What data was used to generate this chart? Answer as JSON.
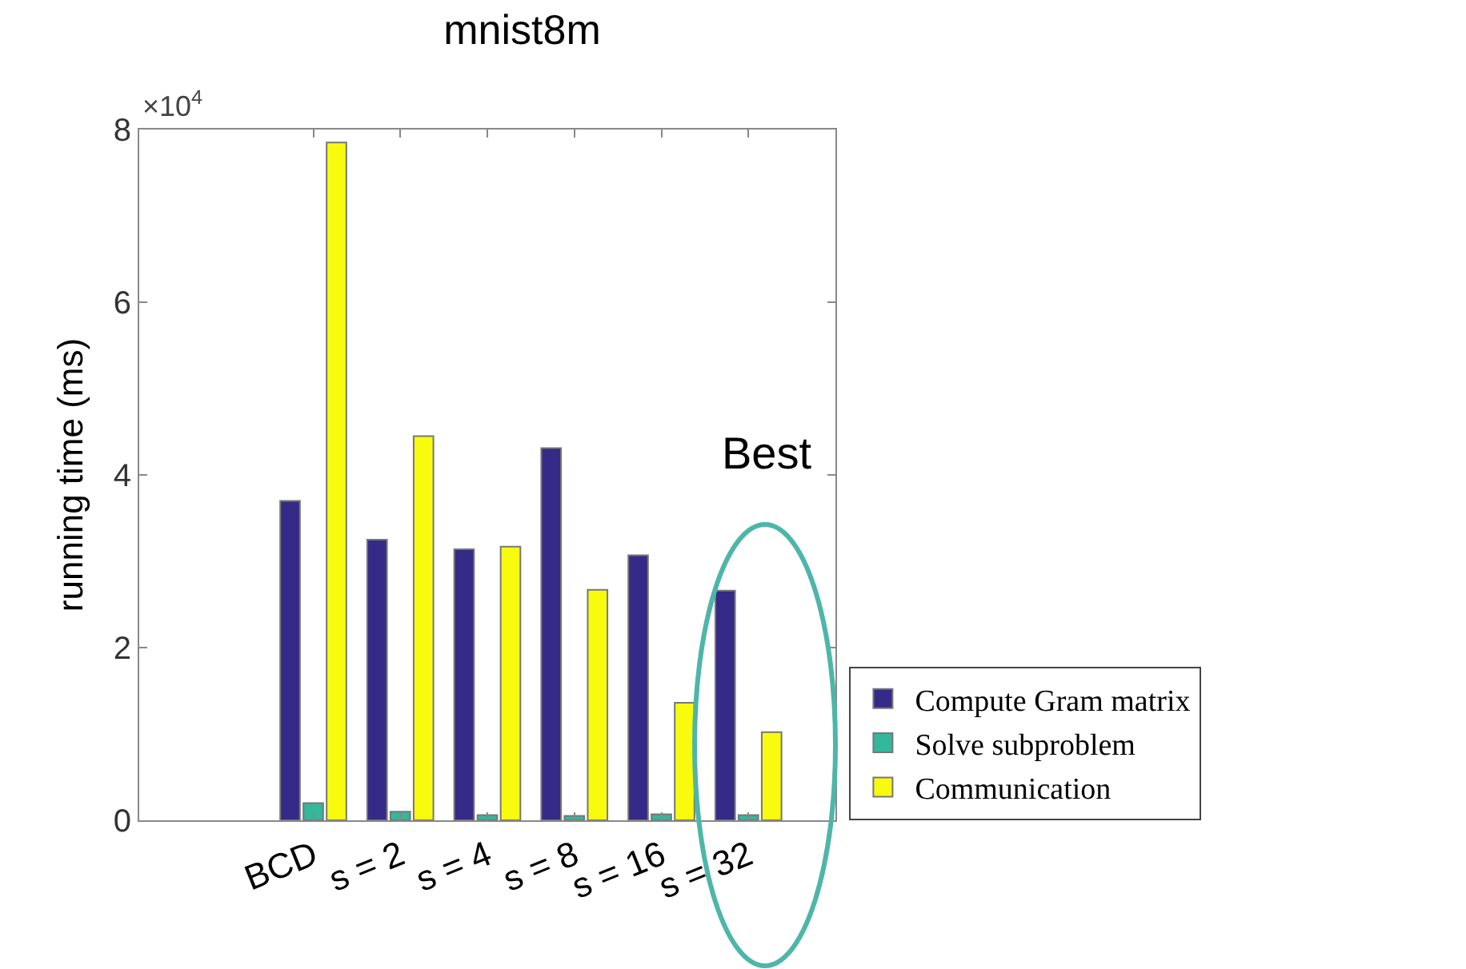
{
  "chart_data": {
    "type": "bar",
    "title": "mnist8m",
    "ylabel": "running time (ms)",
    "categories": [
      "BCD",
      "s = 2",
      "s = 4",
      "s = 8",
      "s = 16",
      "s = 32"
    ],
    "series": [
      {
        "name": "Compute Gram matrix",
        "color": "#352a87",
        "values": [
          3.7,
          3.25,
          3.14,
          4.31,
          3.07,
          2.66
        ]
      },
      {
        "name": "Solve subproblem",
        "color": "#35b79b",
        "values": [
          0.2,
          0.1,
          0.06,
          0.05,
          0.07,
          0.06
        ]
      },
      {
        "name": "Communication",
        "color": "#f9fb0e",
        "values": [
          7.85,
          4.45,
          3.17,
          2.67,
          1.36,
          1.02
        ]
      }
    ],
    "ylim": [
      0,
      8
    ],
    "yticks": [
      0,
      2,
      4,
      6,
      8
    ],
    "annotations": [
      "×10$^{4}$",
      "Best"
    ],
    "legend": "bottom right",
    "grid": false
  }
}
